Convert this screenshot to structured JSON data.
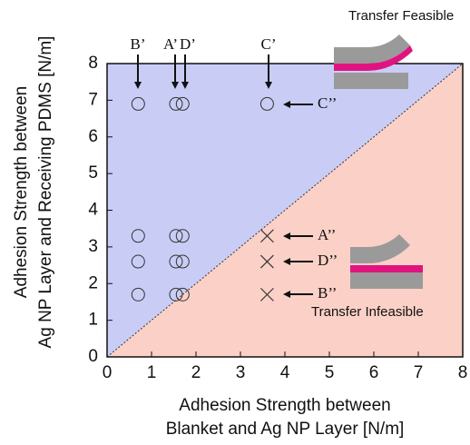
{
  "chart_data": {
    "type": "scatter",
    "xlabel": [
      "Adhesion Strength between",
      "Blanket and Ag NP Layer [N/m]"
    ],
    "ylabel": [
      "Adhesion Strength between",
      "Ag NP Layer and Receiving PDMS [N/m]"
    ],
    "xlim": [
      0,
      8
    ],
    "ylim": [
      0,
      8
    ],
    "xticks": [
      0,
      1,
      2,
      3,
      4,
      5,
      6,
      7,
      8
    ],
    "yticks": [
      0,
      1,
      2,
      3,
      4,
      5,
      6,
      7,
      8
    ],
    "series": [
      {
        "marker": "circle",
        "color": "#333333",
        "x": [
          0.7,
          0.7,
          0.7,
          0.7,
          1.55,
          1.55,
          1.55,
          1.55,
          1.7,
          1.7,
          1.7,
          1.7,
          3.6
        ],
        "values": [
          6.9,
          3.3,
          2.6,
          1.7,
          6.9,
          3.3,
          2.6,
          1.7,
          6.9,
          3.3,
          2.6,
          1.7,
          6.9
        ]
      },
      {
        "marker": "cross",
        "color": "#333333",
        "x": [
          3.6,
          3.6,
          3.6
        ],
        "values": [
          3.3,
          2.6,
          1.7
        ]
      }
    ],
    "regions": [
      {
        "text": "Transfer Feasible",
        "color": "#c9cdf5",
        "text_color": "#1f2fa0"
      },
      {
        "text": "Transfer Infeasible",
        "color": "#fbd0c6",
        "text_color": "#8b1a2a"
      }
    ],
    "annotations": [
      "B’",
      "A’",
      "D’",
      "C’",
      "C’’",
      "A’’",
      "D’’",
      "B’’"
    ]
  }
}
